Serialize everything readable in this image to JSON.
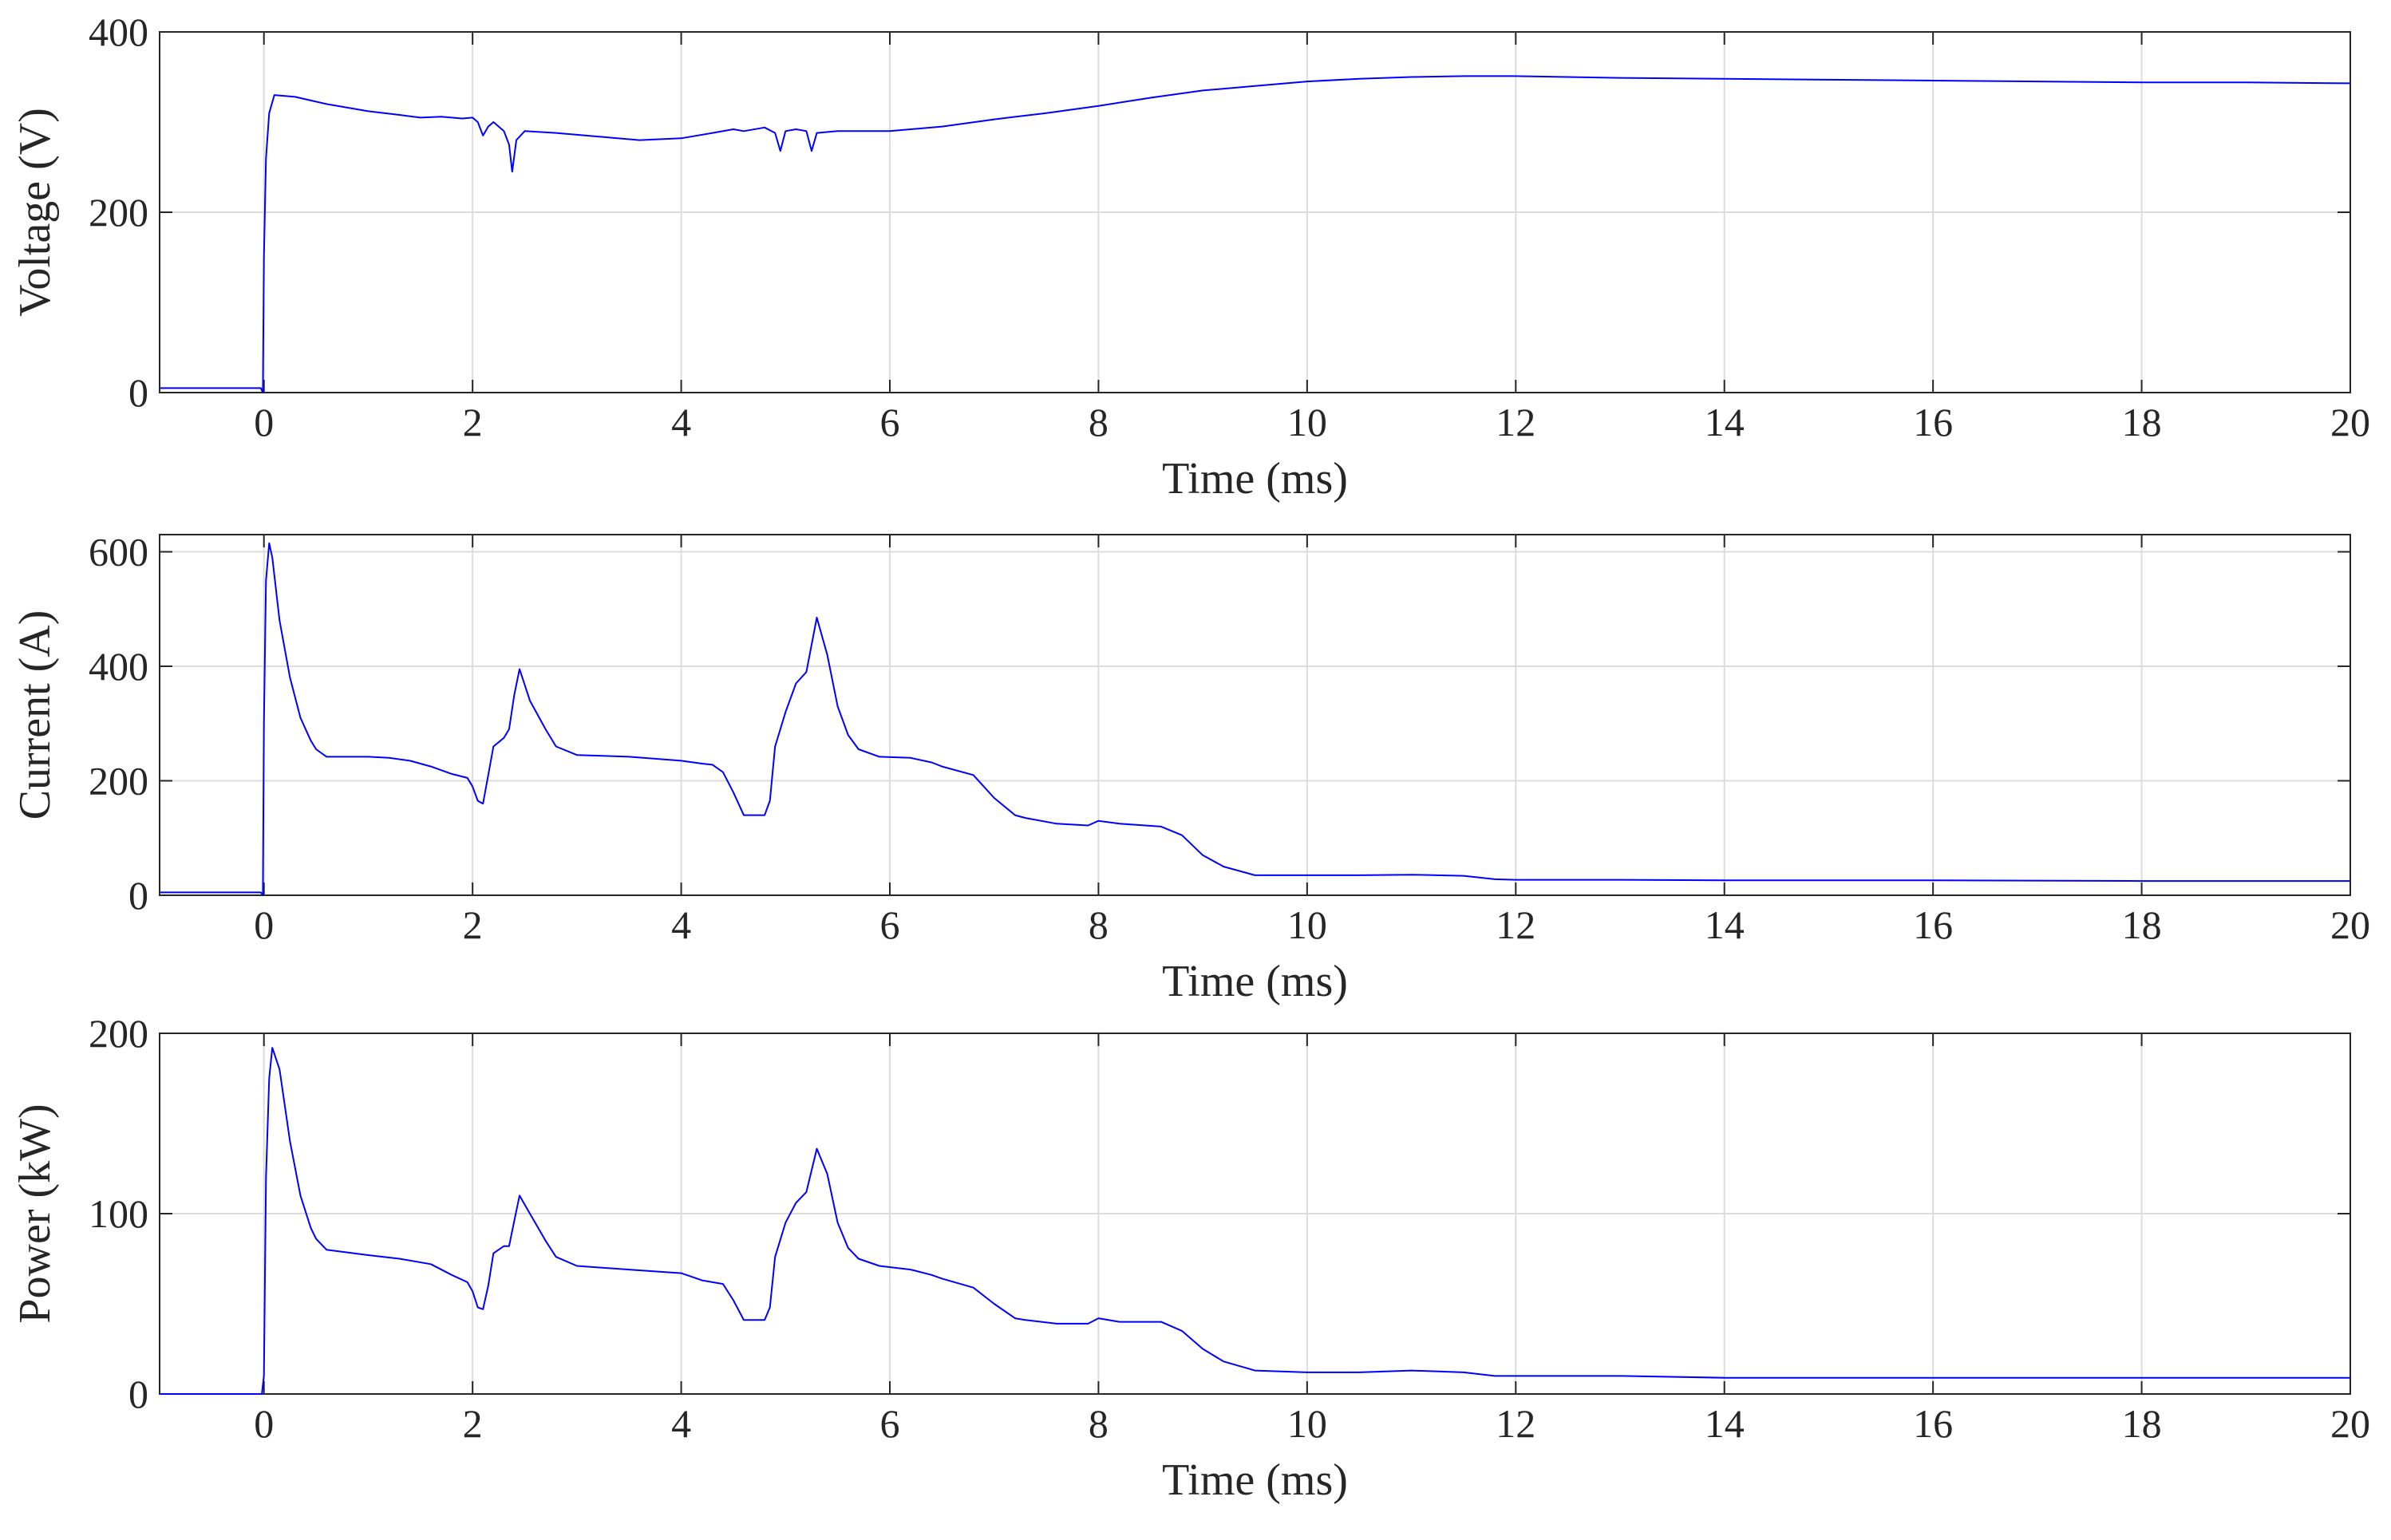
{
  "chart_data": [
    {
      "type": "line",
      "xlabel": "Time (ms)",
      "ylabel": "Voltage (V)",
      "xlim": [
        -1,
        20
      ],
      "ylim": [
        0,
        400
      ],
      "xticks": [
        0,
        2,
        4,
        6,
        8,
        10,
        12,
        14,
        16,
        18,
        20
      ],
      "yticks": [
        0,
        200,
        400
      ],
      "grid": true,
      "color": "#0000ff",
      "series": [
        {
          "x": [
            -1,
            -0.5,
            -0.03,
            -0.01,
            0.0,
            0.02,
            0.05,
            0.1,
            0.3,
            0.6,
            1.0,
            1.3,
            1.5,
            1.7,
            1.9,
            2.0,
            2.05,
            2.1,
            2.15,
            2.2,
            2.3,
            2.35,
            2.38,
            2.42,
            2.5,
            2.8,
            3.2,
            3.6,
            4.0,
            4.3,
            4.5,
            4.6,
            4.8,
            4.9,
            4.95,
            5.0,
            5.1,
            5.2,
            5.25,
            5.3,
            5.5,
            6.0,
            6.5,
            7.0,
            7.5,
            8.0,
            8.5,
            9.0,
            9.5,
            10.0,
            10.5,
            11.0,
            11.5,
            12.0,
            13.0,
            14.0,
            15.0,
            16.0,
            17.0,
            18.0,
            19.0,
            20.0
          ],
          "y": [
            5,
            5,
            5,
            0,
            150,
            260,
            310,
            330,
            328,
            320,
            312,
            308,
            305,
            306,
            304,
            305,
            300,
            285,
            295,
            300,
            290,
            275,
            245,
            280,
            290,
            288,
            284,
            280,
            282,
            288,
            292,
            290,
            294,
            288,
            268,
            290,
            292,
            290,
            268,
            288,
            290,
            290,
            295,
            303,
            310,
            318,
            327,
            335,
            340,
            345,
            348,
            350,
            351,
            351,
            349,
            348,
            347,
            346,
            345,
            344,
            344,
            343
          ]
        }
      ]
    },
    {
      "type": "line",
      "xlabel": "Time (ms)",
      "ylabel": "Current (A)",
      "xlim": [
        -1,
        20
      ],
      "ylim": [
        0,
        630
      ],
      "xticks": [
        0,
        2,
        4,
        6,
        8,
        10,
        12,
        14,
        16,
        18,
        20
      ],
      "yticks": [
        0,
        200,
        400,
        600
      ],
      "grid": true,
      "color": "#0000ff",
      "series": [
        {
          "x": [
            -1,
            -0.5,
            -0.03,
            -0.01,
            0.0,
            0.02,
            0.05,
            0.08,
            0.15,
            0.25,
            0.35,
            0.45,
            0.5,
            0.6,
            1.0,
            1.2,
            1.4,
            1.6,
            1.8,
            1.95,
            2.0,
            2.05,
            2.1,
            2.15,
            2.2,
            2.3,
            2.35,
            2.4,
            2.45,
            2.55,
            2.7,
            2.8,
            3.0,
            3.5,
            4.0,
            4.2,
            4.3,
            4.4,
            4.5,
            4.6,
            4.8,
            4.85,
            4.9,
            5.0,
            5.1,
            5.2,
            5.3,
            5.4,
            5.5,
            5.6,
            5.7,
            5.9,
            6.2,
            6.4,
            6.5,
            6.8,
            7.0,
            7.2,
            7.3,
            7.6,
            7.9,
            8.0,
            8.2,
            8.6,
            8.8,
            9.0,
            9.2,
            9.5,
            10.0,
            10.5,
            11.0,
            11.5,
            11.8,
            12.0,
            12.5,
            13.0,
            14.0,
            16.0,
            18.0,
            20.0
          ],
          "y": [
            5,
            5,
            5,
            0,
            300,
            550,
            615,
            590,
            480,
            380,
            310,
            270,
            255,
            242,
            242,
            240,
            235,
            225,
            212,
            205,
            190,
            165,
            160,
            210,
            260,
            275,
            290,
            350,
            395,
            340,
            290,
            260,
            245,
            242,
            235,
            230,
            228,
            215,
            180,
            140,
            140,
            165,
            260,
            320,
            370,
            390,
            485,
            420,
            330,
            280,
            255,
            242,
            240,
            232,
            225,
            210,
            170,
            140,
            135,
            125,
            122,
            130,
            125,
            120,
            105,
            70,
            50,
            35,
            35,
            35,
            36,
            34,
            28,
            27,
            27,
            27,
            26,
            26,
            25,
            25
          ]
        }
      ]
    },
    {
      "type": "line",
      "xlabel": "Time (ms)",
      "ylabel": "Power (kW)",
      "xlim": [
        -1,
        20
      ],
      "ylim": [
        0,
        200
      ],
      "xticks": [
        0,
        2,
        4,
        6,
        8,
        10,
        12,
        14,
        16,
        18,
        20
      ],
      "yticks": [
        0,
        100,
        200
      ],
      "grid": true,
      "color": "#0000ff",
      "series": [
        {
          "x": [
            -1,
            -0.5,
            -0.02,
            0.0,
            0.02,
            0.05,
            0.08,
            0.15,
            0.25,
            0.35,
            0.45,
            0.5,
            0.6,
            1.0,
            1.3,
            1.6,
            1.8,
            1.95,
            2.0,
            2.05,
            2.1,
            2.15,
            2.2,
            2.3,
            2.35,
            2.4,
            2.45,
            2.55,
            2.7,
            2.8,
            3.0,
            3.5,
            4.0,
            4.2,
            4.3,
            4.4,
            4.5,
            4.6,
            4.8,
            4.85,
            4.9,
            5.0,
            5.1,
            5.2,
            5.3,
            5.4,
            5.5,
            5.6,
            5.7,
            5.9,
            6.2,
            6.4,
            6.5,
            6.8,
            7.0,
            7.2,
            7.3,
            7.6,
            7.9,
            8.0,
            8.2,
            8.6,
            8.8,
            9.0,
            9.2,
            9.5,
            10.0,
            10.5,
            11.0,
            11.5,
            11.8,
            12.0,
            13.0,
            14.0,
            16.0,
            18.0,
            20.0
          ],
          "y": [
            0,
            0,
            0,
            10,
            120,
            175,
            192,
            180,
            140,
            110,
            92,
            86,
            80,
            77,
            75,
            72,
            66,
            62,
            57,
            48,
            47,
            60,
            78,
            82,
            82,
            96,
            110,
            100,
            85,
            76,
            71,
            69,
            67,
            63,
            62,
            61,
            52,
            41,
            41,
            48,
            76,
            95,
            106,
            112,
            136,
            122,
            95,
            81,
            75,
            71,
            69,
            66,
            64,
            59,
            50,
            42,
            41,
            39,
            39,
            42,
            40,
            40,
            35,
            25,
            18,
            13,
            12,
            12,
            13,
            12,
            10,
            10,
            10,
            9,
            9,
            9,
            9
          ]
        }
      ]
    }
  ]
}
